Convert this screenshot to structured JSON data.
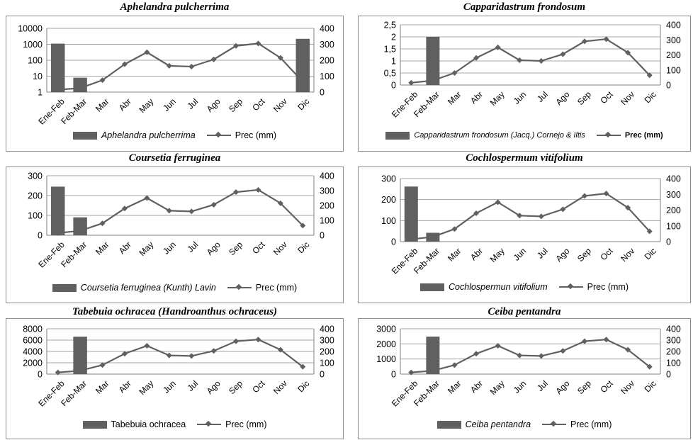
{
  "chart_data": [
    {
      "type": "bar",
      "title": "Aphelandra pulcherrima",
      "categories": [
        "Ene-Feb",
        "Feb-Mar",
        "Mar",
        "Abr",
        "May",
        "Jun",
        "Jul",
        "Ago",
        "Sep",
        "Oct",
        "Nov",
        "Dic"
      ],
      "y_scale": "log",
      "ylim": [
        1,
        10000
      ],
      "yticks": [
        "1",
        "10",
        "100",
        "1000",
        "10000"
      ],
      "y2lim": [
        0,
        400
      ],
      "y2ticks": [
        "0",
        "100",
        "200",
        "300",
        "400"
      ],
      "series": [
        {
          "name": "Aphelandra pulcherrima",
          "kind": "bar",
          "axis": "left",
          "values": [
            1100,
            8,
            null,
            null,
            null,
            null,
            null,
            null,
            null,
            null,
            null,
            2200
          ]
        },
        {
          "name": "Prec (mm)",
          "kind": "line",
          "axis": "right",
          "values": [
            15,
            25,
            75,
            175,
            250,
            165,
            160,
            205,
            290,
            305,
            215,
            65
          ]
        }
      ],
      "legend": {
        "species": "Aphelandra pulcherrima",
        "prec": "Prec (mm)",
        "species_italic": true,
        "prec_bold": false
      }
    },
    {
      "type": "bar",
      "title": "Capparidastrum frondosum",
      "categories": [
        "Ene-Feb",
        "Feb-Mar",
        "Mar",
        "Abr",
        "May",
        "Jun",
        "Jul",
        "Ago",
        "Sep",
        "Oct",
        "Nov",
        "Dic"
      ],
      "ylim": [
        0,
        2.5
      ],
      "yticks": [
        "0",
        "0,5",
        "1",
        "1,5",
        "2",
        "2,5"
      ],
      "y2lim": [
        0,
        400
      ],
      "y2ticks": [
        "0",
        "100",
        "200",
        "300",
        "400"
      ],
      "series": [
        {
          "name": "Capparidastrum frondosum (Jacq.) Cornejo & Iltis",
          "kind": "bar",
          "axis": "left",
          "values": [
            null,
            2,
            null,
            null,
            null,
            null,
            null,
            null,
            null,
            null,
            null,
            null
          ]
        },
        {
          "name": "Prec (mm)",
          "kind": "line",
          "axis": "right",
          "values": [
            15,
            30,
            80,
            180,
            250,
            165,
            160,
            205,
            290,
            305,
            215,
            65
          ]
        }
      ],
      "legend": {
        "species": "Capparidastrum frondosum (Jacq.) Cornejo & Iltis",
        "prec": "Prec (mm)",
        "species_italic": true,
        "prec_bold": true
      }
    },
    {
      "type": "bar",
      "title": "Coursetia ferruginea",
      "categories": [
        "Ene-Feb",
        "Feb-Mar",
        "Mar",
        "Abr",
        "May",
        "Jun",
        "Jul",
        "Ago",
        "Sep",
        "Oct",
        "Nov",
        "Dic"
      ],
      "ylim": [
        0,
        300
      ],
      "yticks": [
        "0",
        "100",
        "200",
        "300"
      ],
      "y2lim": [
        0,
        400
      ],
      "y2ticks": [
        "0",
        "100",
        "200",
        "300",
        "400"
      ],
      "series": [
        {
          "name": "Coursetia ferruginea (Kunth) Lavin",
          "kind": "bar",
          "axis": "left",
          "values": [
            245,
            90,
            null,
            null,
            null,
            null,
            null,
            null,
            null,
            null,
            null,
            null
          ]
        },
        {
          "name": "Prec (mm)",
          "kind": "line",
          "axis": "right",
          "values": [
            15,
            30,
            80,
            180,
            250,
            165,
            160,
            205,
            290,
            305,
            215,
            65
          ]
        }
      ],
      "legend": {
        "species": "Coursetia ferruginea (Kunth) Lavin",
        "prec": "Prec (mm)",
        "species_italic": true,
        "prec_bold": false
      }
    },
    {
      "type": "bar",
      "title": "Cochlospermum  vitifolium",
      "categories": [
        "Ene-Feb",
        "Feb-Mar",
        "Mar",
        "Abr",
        "May",
        "Jun",
        "Jul",
        "Ago",
        "Sep",
        "Oct",
        "Nov",
        "Dic"
      ],
      "ylim": [
        0,
        300
      ],
      "yticks": [
        "0",
        "100",
        "200",
        "300"
      ],
      "y2lim": [
        0,
        400
      ],
      "y2ticks": [
        "0",
        "100",
        "200",
        "300",
        "400"
      ],
      "series": [
        {
          "name": "Cochlospermun vitifolium",
          "kind": "bar",
          "axis": "left",
          "values": [
            262,
            42,
            null,
            null,
            null,
            null,
            null,
            null,
            null,
            null,
            null,
            null
          ]
        },
        {
          "name": "Prec (mm)",
          "kind": "line",
          "axis": "right",
          "values": [
            15,
            30,
            80,
            180,
            250,
            165,
            160,
            205,
            290,
            305,
            215,
            65
          ]
        }
      ],
      "legend": {
        "species": "Cochlospermun vitifolium",
        "prec": "Prec (mm)",
        "species_italic": true,
        "prec_bold": false
      }
    },
    {
      "type": "bar",
      "title": "Tabebuia ochracea (Handroanthus ochraceus)",
      "categories": [
        "Ene-Feb",
        "Feb-Mar",
        "Mar",
        "Abr",
        "May",
        "Jun",
        "Jul",
        "Ago",
        "Sep",
        "Oct",
        "Nov",
        "Dic"
      ],
      "ylim": [
        0,
        8000
      ],
      "yticks": [
        "0",
        "2000",
        "4000",
        "6000",
        "8000"
      ],
      "y2lim": [
        0,
        400
      ],
      "y2ticks": [
        "0",
        "100",
        "200",
        "300",
        "400"
      ],
      "series": [
        {
          "name": "Tabebuia ochracea",
          "kind": "bar",
          "axis": "left",
          "values": [
            null,
            6600,
            null,
            null,
            null,
            null,
            null,
            null,
            null,
            null,
            null,
            null
          ]
        },
        {
          "name": "Prec (mm)",
          "kind": "line",
          "axis": "right",
          "values": [
            15,
            30,
            80,
            180,
            250,
            165,
            160,
            205,
            290,
            305,
            215,
            65
          ]
        }
      ],
      "legend": {
        "species": "Tabebuia ochracea",
        "prec": "Prec (mm)",
        "species_italic": false,
        "prec_bold": false
      }
    },
    {
      "type": "bar",
      "title": "Ceiba pentandra",
      "categories": [
        "Ene-Feb",
        "Feb-Mar",
        "Mar",
        "Abr",
        "May",
        "Jun",
        "Jul",
        "Ago",
        "Sep",
        "Oct",
        "Nov",
        "Dic"
      ],
      "ylim": [
        0,
        3000
      ],
      "yticks": [
        "0",
        "1000",
        "2000",
        "3000"
      ],
      "y2lim": [
        0,
        400
      ],
      "y2ticks": [
        "0",
        "100",
        "200",
        "300",
        "400"
      ],
      "series": [
        {
          "name": "Ceiba pentandra",
          "kind": "bar",
          "axis": "left",
          "values": [
            null,
            2480,
            null,
            null,
            null,
            null,
            null,
            null,
            null,
            null,
            null,
            null
          ]
        },
        {
          "name": "Prec (mm)",
          "kind": "line",
          "axis": "right",
          "values": [
            15,
            30,
            80,
            180,
            250,
            165,
            160,
            205,
            290,
            305,
            215,
            65
          ]
        }
      ],
      "legend": {
        "species": "Ceiba pentandra",
        "prec": "Prec (mm)",
        "species_italic": true,
        "prec_bold": false
      }
    }
  ],
  "colors": {
    "bar": "#606060",
    "line": "#606060",
    "grid": "#a6a6a6",
    "frame": "#8c8c8c"
  }
}
